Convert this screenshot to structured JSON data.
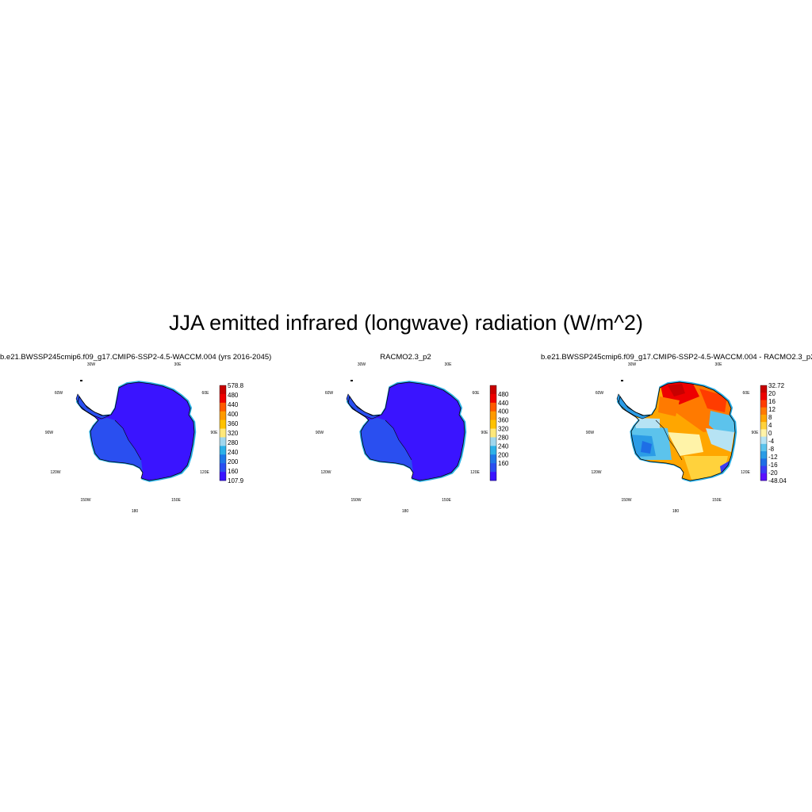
{
  "title": "JJA emitted infrared (longwave) radiation (W/m^2)",
  "panels": [
    {
      "id": "model",
      "title": "b.e21.BWSSP245cmip6.f09_g17.CMIP6-SSP2-4.5-WACCM.004 (yrs 2016-2045)",
      "colorbar": {
        "labels": [
          "578.8",
          "480",
          "440",
          "400",
          "360",
          "320",
          "280",
          "240",
          "200",
          "160",
          "107.9"
        ],
        "colors": [
          "#c80000",
          "#ee0000",
          "#ff5a00",
          "#ff9a00",
          "#ffc200",
          "#ffe87a",
          "#9fd7ee",
          "#2cb1e8",
          "#1e78e8",
          "#2a4ff0",
          "#3a14ff"
        ]
      },
      "field": "uniform_blue"
    },
    {
      "id": "racmo",
      "title": "RACMO2.3_p2",
      "colorbar": {
        "labels": [
          "480",
          "440",
          "400",
          "360",
          "320",
          "280",
          "240",
          "200",
          "160"
        ],
        "colors": [
          "#c80000",
          "#ee0000",
          "#ff5a00",
          "#ff9a00",
          "#ffc200",
          "#ffe87a",
          "#9fd7ee",
          "#2cb1e8",
          "#1e78e8",
          "#2a4ff0",
          "#3a14ff"
        ]
      },
      "field": "uniform_blue"
    },
    {
      "id": "diff",
      "title": "b.e21.BWSSP245cmip6.f09_g17.CMIP6-SSP2-4.5-WACCM.004 - RACMO2.3_p2",
      "colorbar": {
        "labels": [
          "32.72",
          "20",
          "16",
          "12",
          "8",
          "4",
          "0",
          "-4",
          "-8",
          "-12",
          "-16",
          "-20",
          "-48.04"
        ],
        "colors": [
          "#c80000",
          "#ee0000",
          "#ff3c00",
          "#ff7a00",
          "#ffa600",
          "#ffd23c",
          "#fff3a8",
          "#b6e3f4",
          "#5cc3ec",
          "#2b9ce6",
          "#1e6ee6",
          "#3a3cf5",
          "#5a10ff"
        ]
      },
      "field": "warm_east_cold_coast"
    }
  ],
  "graticule": {
    "labels": {
      "lon_30w": "30W",
      "lon_30e": "30E",
      "lon_60w": "60W",
      "lon_60e": "60E",
      "lon_90w": "90W",
      "lon_90e": "90E",
      "lon_120w": "120W",
      "lon_120e": "120E",
      "lon_150w": "150W",
      "lon_150e": "150E",
      "lon_180": "180"
    }
  },
  "colors": {
    "ice_interior": "#3a14ff",
    "ice_shelf": "#2a4ff0",
    "coast_fringe": "#2cb1e8",
    "outline": "#000000"
  }
}
